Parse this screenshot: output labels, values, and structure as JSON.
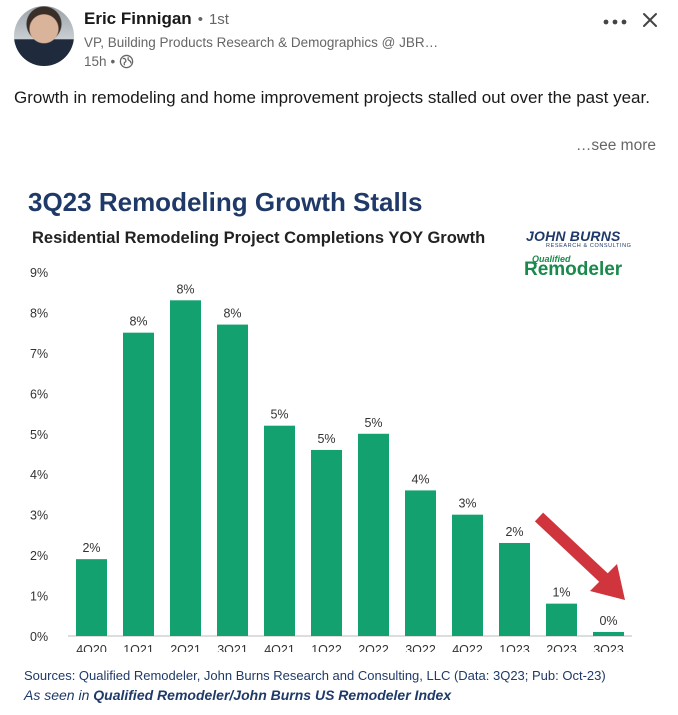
{
  "post": {
    "author": {
      "name": "Eric Finnigan",
      "separator": "•",
      "degree": "1st"
    },
    "headline": "VP, Building Products Research & Demographics @ JBR…",
    "time": "15h",
    "meta_separator": "•",
    "text": "Growth in remodeling and home improvement projects stalled out over the past year.",
    "see_more": "…see more",
    "icons": {
      "more": "more-horizontal-icon",
      "close": "close-icon",
      "visibility": "globe-icon"
    }
  },
  "chart_image": {
    "logos": {
      "jbr_main": "JOHN BURNS",
      "jbr_sub": "RESEARCH & CONSULTING",
      "qr_small": "Qualified",
      "qr_big": "Remodeler"
    },
    "sources": "Sources: Qualified Remodeler, John Burns Research and Consulting, LLC (Data: 3Q23; Pub: Oct-23)",
    "seen_in_prefix": "As seen in",
    "seen_in_bold": "Qualified Remodeler/John Burns US Remodeler Index"
  },
  "chart_data": {
    "type": "bar",
    "title": "3Q23 Remodeling Growth Stalls",
    "subtitle": "Residential Remodeling Project Completions YOY Growth",
    "categories": [
      "4Q20",
      "1Q21",
      "2Q21",
      "3Q21",
      "4Q21",
      "1Q22",
      "2Q22",
      "3Q22",
      "4Q22",
      "1Q23",
      "2Q23",
      "3Q23"
    ],
    "values": [
      1.9,
      7.5,
      8.3,
      7.7,
      5.2,
      4.6,
      5.0,
      3.6,
      3.0,
      2.3,
      0.8,
      0.1
    ],
    "data_labels": [
      "2%",
      "8%",
      "8%",
      "8%",
      "5%",
      "5%",
      "5%",
      "4%",
      "3%",
      "2%",
      "1%",
      "0%"
    ],
    "yticks": [
      "0%",
      "1%",
      "2%",
      "3%",
      "4%",
      "5%",
      "6%",
      "7%",
      "8%",
      "9%"
    ],
    "ylim": [
      0,
      9
    ],
    "grid": false,
    "legend": "none",
    "bar_color": "#13a26f",
    "arrow_color": "#d0343c",
    "annotation": "red downward arrow pointing to 3Q23"
  }
}
